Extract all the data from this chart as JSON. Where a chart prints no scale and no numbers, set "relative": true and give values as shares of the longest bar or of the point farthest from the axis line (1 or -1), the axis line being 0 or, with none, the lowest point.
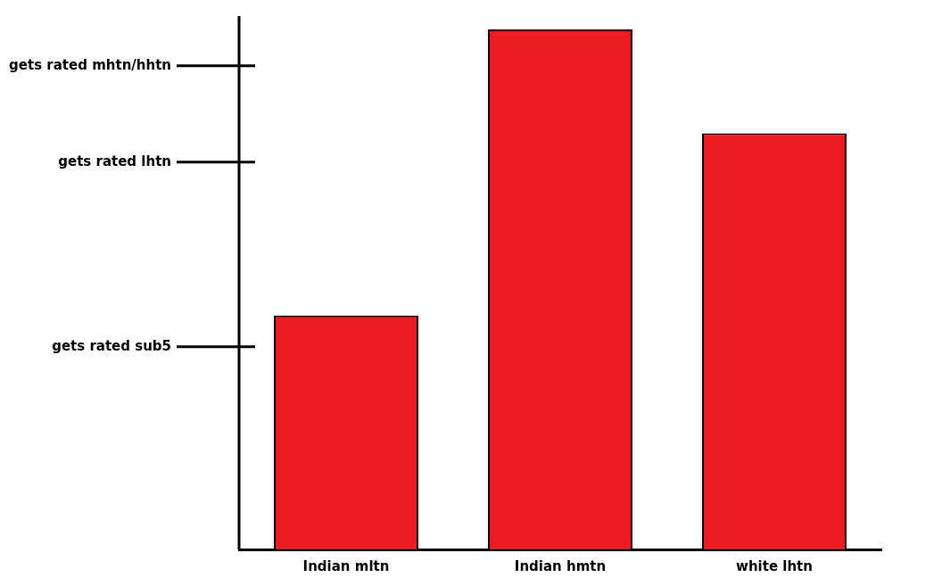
{
  "chart_data": {
    "type": "bar",
    "categories": [
      "Indian mltn",
      "Indian hmtn",
      "white lhtn"
    ],
    "values": [
      0.45,
      1.0,
      0.8
    ],
    "color": "#ed1c24",
    "relative": true,
    "annotations": [
      "gets rated sub5",
      "gets rated lhtn",
      "gets rated mhtn/hhtn"
    ],
    "legend": false
  }
}
